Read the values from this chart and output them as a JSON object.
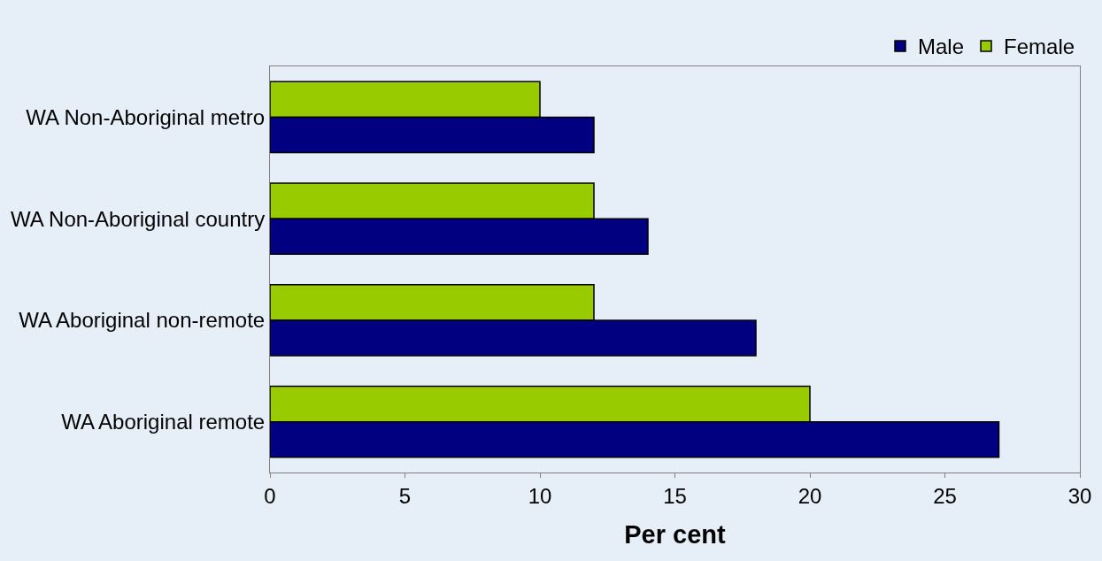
{
  "chart_data": {
    "type": "bar",
    "orientation": "horizontal",
    "xlabel": "Per cent",
    "categories": [
      "WA Non-Aboriginal metro",
      "WA Non-Aboriginal country",
      "WA Aboriginal non-remote",
      "WA Aboriginal remote"
    ],
    "series": [
      {
        "name": "Male",
        "color": "#000080",
        "values": [
          12,
          14,
          18,
          27
        ]
      },
      {
        "name": "Female",
        "color": "#99cc00",
        "values": [
          10,
          12,
          12,
          20
        ]
      }
    ],
    "xlim": [
      0,
      30
    ],
    "xticks": [
      0,
      5,
      10,
      15,
      20,
      25,
      30
    ],
    "grid": false,
    "legend": "top right"
  }
}
